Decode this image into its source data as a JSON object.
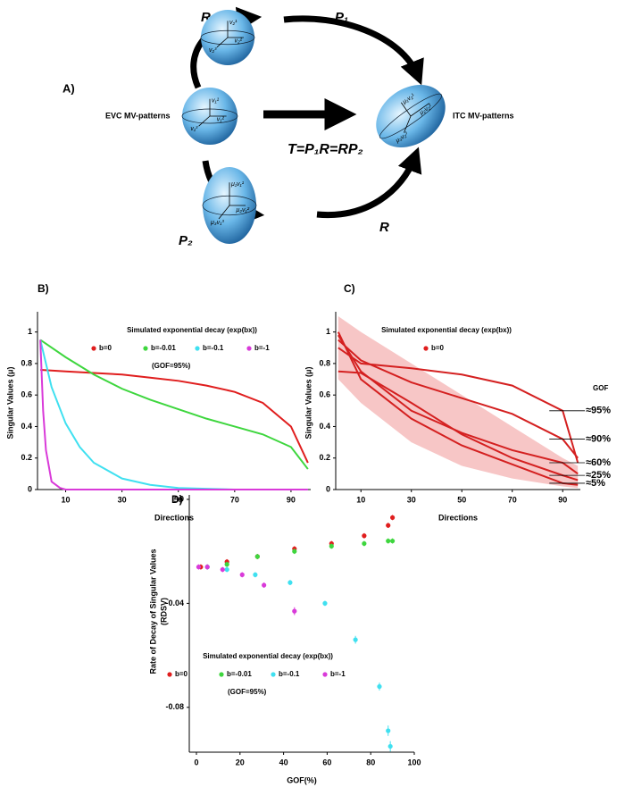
{
  "panel_a": {
    "label": "A)",
    "ops": [
      "R",
      "P₁",
      "P₂",
      "R"
    ],
    "left_label": "EVC MV-patterns",
    "right_label": "ITC MV-patterns",
    "equation": "T=P₁R=RP₂",
    "ellipsoids": [
      {
        "labels": [
          "v₂¹",
          "v₂²",
          "v₂³"
        ]
      },
      {
        "labels": [
          "v₁¹",
          "v₁²",
          "v₁³"
        ]
      },
      {
        "labels": [
          "μ₁v₂¹",
          "μ₂v₂²",
          "μ₃v₂³"
        ]
      },
      {
        "labels": [
          "μ₁v₁¹",
          "μ₂v₁²",
          "μ₃v₁³"
        ]
      }
    ]
  },
  "chart_data": [
    {
      "type": "line",
      "panel": "B)",
      "xlabel": "Directions",
      "ylabel": "Singular Values  (μ)",
      "legend_title": "Simulated exponential decay (exp(bx))",
      "legend_note": "(GOF=95%)",
      "xlim": [
        0,
        97
      ],
      "ylim": [
        0,
        1.1
      ],
      "xticks": [
        10,
        30,
        50,
        70,
        90
      ],
      "yticks": [
        0,
        0.2,
        0.4,
        0.6,
        0.8,
        1
      ],
      "series": [
        {
          "name": "b=0",
          "color": "#e01e1e",
          "x": [
            1,
            10,
            20,
            30,
            40,
            50,
            60,
            70,
            80,
            90,
            96
          ],
          "y": [
            0.76,
            0.75,
            0.74,
            0.73,
            0.71,
            0.69,
            0.66,
            0.62,
            0.55,
            0.4,
            0.17
          ]
        },
        {
          "name": "b=-0.01",
          "color": "#3ed63e",
          "x": [
            1,
            10,
            20,
            30,
            40,
            50,
            60,
            70,
            80,
            90,
            96
          ],
          "y": [
            0.95,
            0.84,
            0.73,
            0.64,
            0.57,
            0.51,
            0.45,
            0.4,
            0.35,
            0.27,
            0.13
          ]
        },
        {
          "name": "b=-0.1",
          "color": "#3fe0f0",
          "x": [
            1,
            5,
            10,
            15,
            20,
            30,
            40,
            50,
            60,
            70,
            96
          ],
          "y": [
            0.95,
            0.65,
            0.42,
            0.27,
            0.17,
            0.07,
            0.03,
            0.01,
            0.005,
            0,
            0
          ]
        },
        {
          "name": "b=-1",
          "color": "#d93ad9",
          "x": [
            1,
            2,
            3,
            5,
            8,
            10,
            96
          ],
          "y": [
            0.95,
            0.5,
            0.25,
            0.05,
            0.01,
            0,
            0
          ]
        }
      ]
    },
    {
      "type": "line",
      "panel": "C)",
      "xlabel": "Directions",
      "ylabel": "Singular Values  (μ)",
      "legend_title": "Simulated exponential decay (exp(bx))",
      "legend": [
        {
          "name": "b=0",
          "color": "#e01e1e"
        }
      ],
      "label_title": "GOF",
      "xlim": [
        0,
        97
      ],
      "ylim": [
        0,
        1.1
      ],
      "xticks": [
        10,
        30,
        50,
        70,
        90
      ],
      "yticks": [
        0,
        0.2,
        0.4,
        0.6,
        0.8,
        1
      ],
      "band": {
        "color": "#f7c6c6",
        "x": [
          1,
          10,
          30,
          50,
          70,
          90,
          96
        ],
        "lower": [
          0.7,
          0.55,
          0.3,
          0.15,
          0.07,
          0.02,
          0.01
        ],
        "upper": [
          1.1,
          1.0,
          0.8,
          0.6,
          0.4,
          0.2,
          0.15
        ]
      },
      "series": [
        {
          "label": "≈95%",
          "color": "#d42020",
          "x": [
            1,
            10,
            30,
            50,
            70,
            90,
            96
          ],
          "y": [
            0.9,
            0.8,
            0.77,
            0.73,
            0.66,
            0.5,
            0.17
          ]
        },
        {
          "label": "≈90%",
          "color": "#d42020",
          "x": [
            1,
            10,
            30,
            50,
            70,
            90,
            96
          ],
          "y": [
            0.95,
            0.82,
            0.68,
            0.58,
            0.48,
            0.32,
            0.2
          ]
        },
        {
          "label": "≈60%",
          "color": "#d42020",
          "x": [
            1,
            10,
            30,
            50,
            70,
            90,
            96
          ],
          "y": [
            0.98,
            0.75,
            0.5,
            0.36,
            0.25,
            0.17,
            0.1
          ]
        },
        {
          "label": "≈25%",
          "color": "#d42020",
          "x": [
            1,
            10,
            30,
            50,
            70,
            90,
            96
          ],
          "y": [
            0.75,
            0.74,
            0.55,
            0.35,
            0.2,
            0.09,
            0.06
          ]
        },
        {
          "label": "≈5%",
          "color": "#d42020",
          "x": [
            1,
            10,
            30,
            50,
            70,
            90,
            96
          ],
          "y": [
            1,
            0.7,
            0.45,
            0.28,
            0.16,
            0.04,
            0.03
          ]
        }
      ]
    },
    {
      "type": "scatter",
      "panel": "D)",
      "xlabel": "GOF(%)",
      "ylabel": [
        "Rate of Decay of Singular Values",
        "(RDSV)"
      ],
      "legend_title": "Simulated exponential decay (exp(bx))",
      "legend_note": "(GOF=95%)",
      "xlim": [
        0,
        100
      ],
      "ylim": [
        -0.1,
        0
      ],
      "xticks": [
        0,
        20,
        40,
        60,
        80,
        100
      ],
      "yticks": [
        -0.08,
        -0.04,
        0
      ],
      "series": [
        {
          "name": "b=0",
          "color": "#e01e1e",
          "x": [
            2,
            14,
            28,
            45,
            62,
            77,
            88,
            90
          ],
          "y": [
            -0.026,
            -0.024,
            -0.022,
            -0.019,
            -0.017,
            -0.014,
            -0.01,
            -0.007
          ],
          "errors": [
            0.001,
            0.001,
            0.001,
            0.001,
            0.001,
            0.001,
            0.001,
            0.001
          ]
        },
        {
          "name": "b=-0.01",
          "color": "#3ed63e",
          "x": [
            5,
            14,
            28,
            45,
            62,
            77,
            88,
            90
          ],
          "y": [
            -0.026,
            -0.025,
            -0.022,
            -0.02,
            -0.018,
            -0.017,
            -0.016,
            -0.016
          ],
          "errors": [
            0.001,
            0.001,
            0.001,
            0.001,
            0.001,
            0.001,
            0.001,
            0.001
          ]
        },
        {
          "name": "b=-0.1",
          "color": "#3fe0f0",
          "x": [
            5,
            14,
            27,
            43,
            59,
            73,
            84,
            88,
            89
          ],
          "y": [
            -0.026,
            -0.027,
            -0.029,
            -0.032,
            -0.04,
            -0.054,
            -0.072,
            -0.089,
            -0.095
          ],
          "errors": [
            0.001,
            0.001,
            0.001,
            0.001,
            0.001,
            0.0015,
            0.0015,
            0.002,
            0.002
          ]
        },
        {
          "name": "b=-1",
          "color": "#d93ad9",
          "x": [
            1,
            5,
            12,
            21,
            31,
            45
          ],
          "y": [
            -0.026,
            -0.026,
            -0.027,
            -0.029,
            -0.033,
            -0.043
          ],
          "errors": [
            0.001,
            0.001,
            0.001,
            0.001,
            0.001,
            0.0015
          ]
        }
      ]
    }
  ]
}
